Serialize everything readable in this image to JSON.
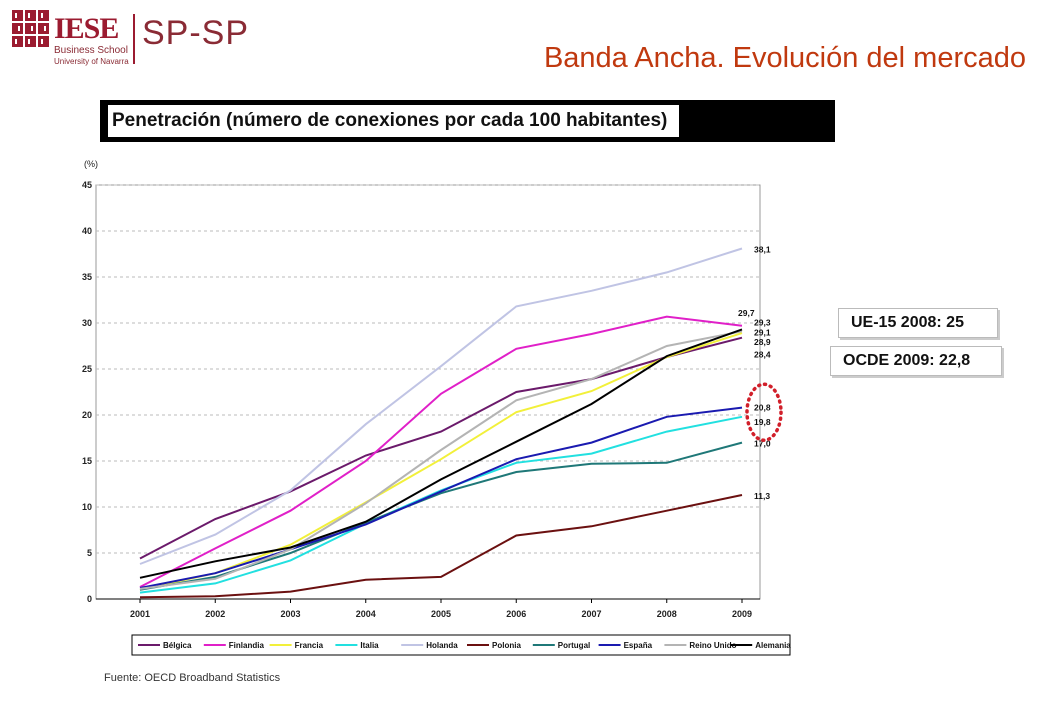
{
  "header": {
    "logo_main": "IESE",
    "logo_school": "Business School",
    "logo_university": "University of Navarra",
    "logo_unit": "SP-SP",
    "slide_title": "Banda Ancha. Evolución del mercado"
  },
  "subtitle": "Penetración (número de conexiones por cada 100 habitantes)",
  "callouts": {
    "eu15": "UE-15 2008: 25",
    "ocde": "OCDE 2009: 22,8"
  },
  "source": "Fuente: OECD Broadband Statistics",
  "colors": {
    "title": "#c0390f",
    "highlight_circle": "#d11f2a"
  },
  "chart_data": {
    "type": "line",
    "ylabel": "(%)",
    "xlabel": "",
    "ylim": [
      0,
      45
    ],
    "yticks": [
      0,
      5,
      10,
      15,
      20,
      25,
      30,
      35,
      40,
      45
    ],
    "grid": true,
    "legend_position": "bottom",
    "x": [
      "2001",
      "2002",
      "2003",
      "2004",
      "2005",
      "2006",
      "2007",
      "2008",
      "2009"
    ],
    "series": [
      {
        "name": "Bélgica",
        "color": "#6b1a6b",
        "values": [
          4.4,
          8.7,
          11.7,
          15.6,
          18.2,
          22.5,
          23.9,
          26.3,
          28.4
        ]
      },
      {
        "name": "Finlandia",
        "color": "#e020c8",
        "values": [
          1.3,
          5.5,
          9.6,
          15.0,
          22.3,
          27.2,
          28.8,
          30.7,
          29.7
        ]
      },
      {
        "name": "Francia",
        "color": "#f2f03a",
        "values": [
          1.0,
          2.8,
          5.9,
          10.5,
          15.2,
          20.3,
          22.6,
          26.3,
          28.9
        ]
      },
      {
        "name": "Italia",
        "color": "#22e0e0",
        "values": [
          0.7,
          1.7,
          4.2,
          8.2,
          11.8,
          14.8,
          15.8,
          18.2,
          19.8
        ]
      },
      {
        "name": "Holanda",
        "color": "#c0c4e4",
        "values": [
          3.8,
          7.0,
          11.8,
          19.0,
          25.3,
          31.8,
          33.5,
          35.5,
          38.1
        ]
      },
      {
        "name": "Polonia",
        "color": "#6b1010",
        "values": [
          0.2,
          0.3,
          0.8,
          2.1,
          2.4,
          6.9,
          7.9,
          9.6,
          11.3
        ]
      },
      {
        "name": "Portugal",
        "color": "#1f7878",
        "values": [
          1.0,
          2.4,
          5.0,
          8.3,
          11.5,
          13.8,
          14.7,
          14.8,
          17.0
        ]
      },
      {
        "name": "España",
        "color": "#1a1ab0",
        "values": [
          1.2,
          2.8,
          5.4,
          8.1,
          11.7,
          15.2,
          17.0,
          19.8,
          20.8
        ]
      },
      {
        "name": "Reino Unido",
        "color": "#b4b4b4",
        "values": [
          1.1,
          2.2,
          5.4,
          10.4,
          16.2,
          21.6,
          23.9,
          27.5,
          29.1
        ]
      },
      {
        "name": "Alemania",
        "color": "#000000",
        "values": [
          2.3,
          4.1,
          5.6,
          8.4,
          13.0,
          17.1,
          21.2,
          26.4,
          29.3
        ]
      }
    ],
    "end_labels": [
      "38,1",
      "29,7",
      "29,3",
      "29,1",
      "28,9",
      "28,4",
      "20,8",
      "19,8",
      "17,0",
      "11,3"
    ]
  }
}
